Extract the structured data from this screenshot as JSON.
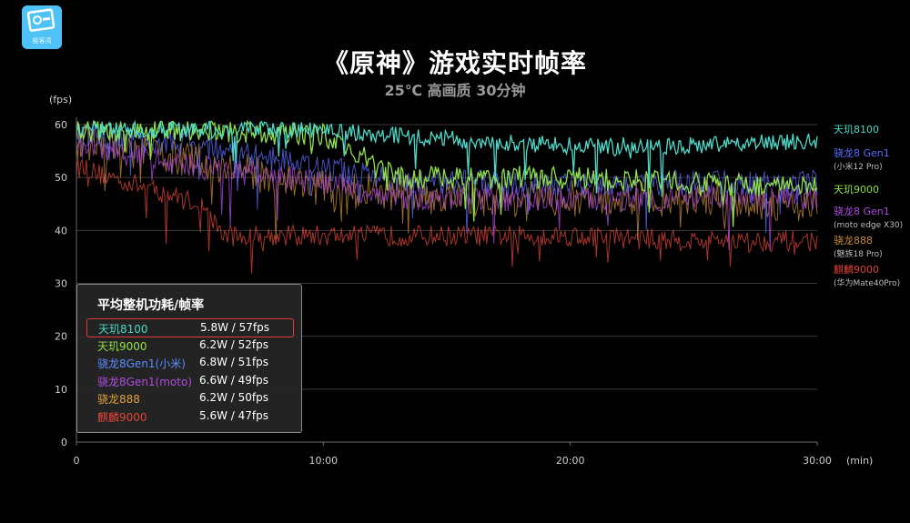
{
  "logo": {
    "text": "极客湾"
  },
  "chart_data": {
    "type": "line",
    "title": "《原神》游戏实时帧率",
    "subtitle": "25℃ 高画质 30分钟",
    "ylabel": "(fps)",
    "xlabel": "(min)",
    "ylim": [
      0,
      60
    ],
    "yticks": [
      "0",
      "10",
      "20",
      "30",
      "40",
      "50",
      "60"
    ],
    "xlim": [
      0,
      30
    ],
    "xticks": [
      "0",
      "10:00",
      "20:00",
      "30:00"
    ],
    "grid": true,
    "legend_position": "right",
    "series": [
      {
        "name": "天玑8100",
        "sub": "",
        "color": "#4dd8c8",
        "avg_fps": 57,
        "x": [
          0,
          5,
          10,
          13,
          16,
          20,
          25,
          30
        ],
        "values": [
          59,
          59,
          59,
          58,
          57,
          56,
          56,
          57
        ]
      },
      {
        "name": "骁龙8 Gen1",
        "sub": "(小米12 Pro)",
        "color": "#5b6cff",
        "avg_fps": 51,
        "x": [
          0,
          5,
          10,
          13,
          16,
          20,
          25,
          30
        ],
        "values": [
          58,
          56,
          52,
          49,
          49,
          49,
          49,
          49
        ]
      },
      {
        "name": "天玑9000",
        "sub": "",
        "color": "#8fe04a",
        "avg_fps": 52,
        "x": [
          0,
          5,
          10,
          13,
          16,
          20,
          25,
          30
        ],
        "values": [
          59,
          59,
          58,
          50,
          50,
          50,
          49,
          48
        ]
      },
      {
        "name": "骁龙8 Gen1",
        "sub": "(moto edge X30)",
        "color": "#b04ce0",
        "avg_fps": 49,
        "x": [
          0,
          5,
          10,
          13,
          16,
          20,
          25,
          30
        ],
        "values": [
          56,
          52,
          49,
          46,
          46,
          46,
          46,
          46
        ]
      },
      {
        "name": "骁龙888",
        "sub": "(魅族18 Pro)",
        "color": "#c88a3a",
        "avg_fps": 50,
        "x": [
          0,
          5,
          10,
          13,
          16,
          20,
          25,
          30
        ],
        "values": [
          57,
          53,
          48,
          47,
          46,
          46,
          46,
          45
        ]
      },
      {
        "name": "麒麟9000",
        "sub": "(华为Mate40Pro)",
        "color": "#e0453a",
        "avg_fps": 47,
        "x": [
          0,
          5,
          6,
          10,
          16,
          20,
          25,
          30
        ],
        "values": [
          52,
          45,
          39,
          39,
          39,
          39,
          38,
          38
        ]
      }
    ]
  },
  "stats": {
    "title": "平均整机功耗/帧率",
    "rows": [
      {
        "name": "天玑8100",
        "value": "5.8W / 57fps",
        "color": "#4dd8c8",
        "highlight": true
      },
      {
        "name": "天玑9000",
        "value": "6.2W / 52fps",
        "color": "#8fe04a",
        "highlight": false
      },
      {
        "name": "骁龙8Gen1(小米)",
        "value": "6.8W / 51fps",
        "color": "#5b8cff",
        "highlight": false
      },
      {
        "name": "骁龙8Gen1(moto)",
        "value": "6.6W / 49fps",
        "color": "#b04ce0",
        "highlight": false
      },
      {
        "name": "骁龙888",
        "value": "6.2W / 50fps",
        "color": "#e0a040",
        "highlight": false
      },
      {
        "name": "麒麟9000",
        "value": "5.6W / 47fps",
        "color": "#e0453a",
        "highlight": false
      }
    ]
  }
}
